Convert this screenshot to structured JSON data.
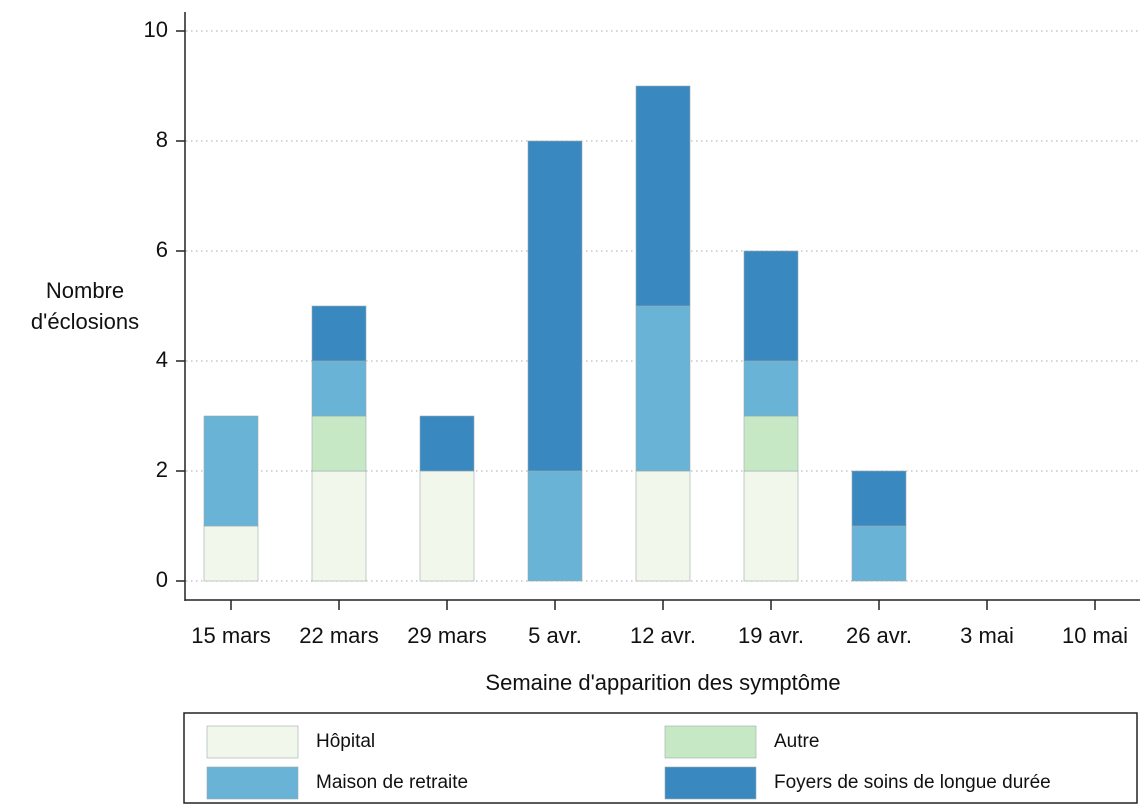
{
  "chart_data": {
    "type": "stacked_bar",
    "y_label": [
      "Nombre",
      "d'éclosions"
    ],
    "x_label": "Semaine d'apparition des symptôme",
    "categories": [
      "15 mars",
      "22 mars",
      "29 mars",
      "5 avr.",
      "12 avr.",
      "19 avr.",
      "26 avr.",
      "3 mai",
      "10 mai"
    ],
    "series": [
      {
        "name": "Hôpital",
        "color": "#f2f7ec",
        "values": [
          1,
          2,
          2,
          0,
          2,
          2,
          0,
          0,
          0
        ]
      },
      {
        "name": "Autre",
        "color": "#c7e8c5",
        "values": [
          0,
          1,
          0,
          0,
          0,
          1,
          0,
          0,
          0
        ]
      },
      {
        "name": "Maison de retraite",
        "color": "#69b3d6",
        "values": [
          2,
          1,
          0,
          2,
          3,
          1,
          1,
          0,
          0
        ]
      },
      {
        "name": "Foyers de soins de longue durée",
        "color": "#3a88c0",
        "values": [
          0,
          1,
          1,
          6,
          4,
          2,
          1,
          0,
          0
        ]
      }
    ],
    "ylim": [
      0,
      10
    ],
    "yticks": [
      0,
      2,
      4,
      6,
      8,
      10
    ],
    "grid": true
  }
}
